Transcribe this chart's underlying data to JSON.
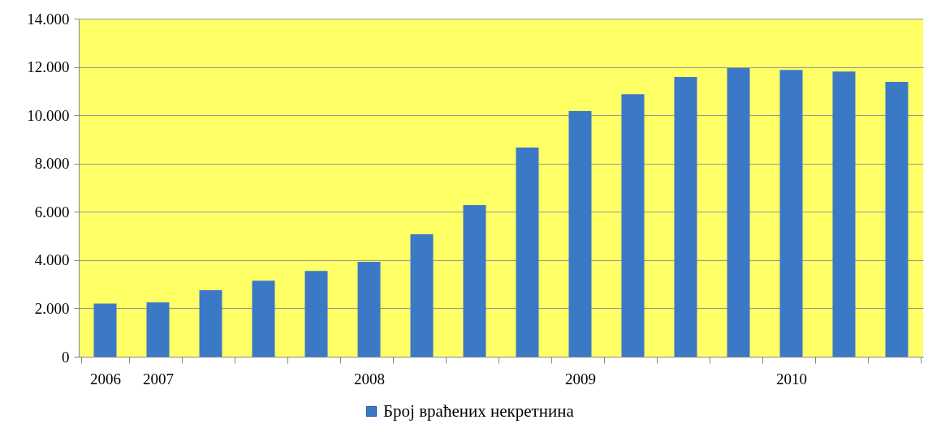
{
  "chart_data": {
    "type": "bar",
    "categories": [
      "2006",
      "2007",
      null,
      null,
      null,
      "2008",
      null,
      null,
      null,
      "2009",
      null,
      null,
      null,
      "2010",
      null,
      null
    ],
    "series": [
      {
        "name": "Број враћених некретнина",
        "color": "#3b78c6",
        "values": [
          2200,
          2250,
          2750,
          3150,
          3550,
          3930,
          5070,
          6280,
          8660,
          10170,
          10870,
          11580,
          11950,
          11880,
          11810,
          11380
        ]
      }
    ],
    "ylim": [
      0,
      14000
    ],
    "yticks": [
      0,
      {
        "value": 2000,
        "label": "2.000"
      },
      {
        "value": 4000,
        "label": "4.000"
      },
      {
        "value": 6000,
        "label": "6.000"
      },
      {
        "value": 8000,
        "label": "8.000"
      },
      {
        "value": 10000,
        "label": "10.000"
      },
      {
        "value": 12000,
        "label": "12.000"
      },
      {
        "value": 14000,
        "label": "14.000"
      }
    ],
    "grid": "y",
    "legend": "bottom"
  }
}
